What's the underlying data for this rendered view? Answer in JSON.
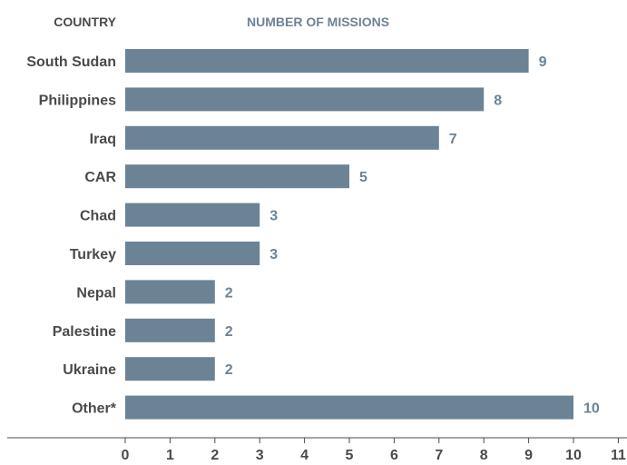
{
  "headers": {
    "category": "COUNTRY",
    "value": "NUMBER OF MISSIONS"
  },
  "colors": {
    "bar": "#6c8396",
    "category_text": "#4a4a4a",
    "value_text": "#6c8396",
    "axis": "#4a4a4a",
    "category_header": "#4a4a4a",
    "value_header": "#6c8396"
  },
  "chart_data": {
    "type": "bar",
    "orientation": "horizontal",
    "categories": [
      "South Sudan",
      "Philippines",
      "Iraq",
      "CAR",
      "Chad",
      "Turkey",
      "Nepal",
      "Palestine",
      "Ukraine",
      "Other*"
    ],
    "values": [
      9,
      8,
      7,
      5,
      3,
      3,
      2,
      2,
      2,
      10
    ],
    "data_labels": [
      "9",
      "8",
      "7",
      "5",
      "3",
      "3",
      "2",
      "2",
      "2",
      "10"
    ],
    "xlim": [
      0,
      11
    ],
    "x_ticks": [
      "0",
      "1",
      "2",
      "3",
      "4",
      "5",
      "6",
      "7",
      "8",
      "9",
      "10",
      "11"
    ],
    "grid": false,
    "legend": "none"
  }
}
